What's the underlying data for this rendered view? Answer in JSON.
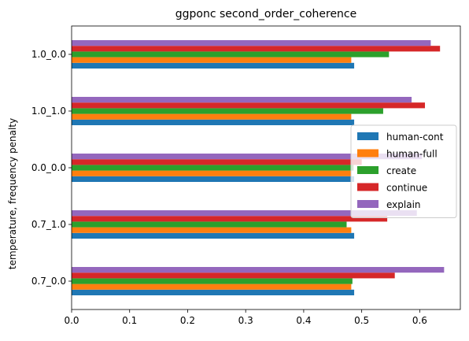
{
  "chart_data": {
    "type": "bar",
    "orientation": "horizontal",
    "title": "ggponc second_order_coherence",
    "xlabel": "",
    "ylabel": "temperature, frequency penalty",
    "xlim": [
      0,
      0.67
    ],
    "xticks": [
      "0.0",
      "0.1",
      "0.2",
      "0.3",
      "0.4",
      "0.5",
      "0.6"
    ],
    "xtick_values": [
      0.0,
      0.1,
      0.2,
      0.3,
      0.4,
      0.5,
      0.6
    ],
    "categories": [
      "0.7_0.0",
      "0.7_1.0",
      "0.0_0.0",
      "1.0_1.0",
      "1.0_0.0"
    ],
    "grid": false,
    "legend_position": "center-right",
    "series": [
      {
        "name": "human-cont",
        "color": "#1f77b4",
        "values": [
          0.487,
          0.487,
          0.487,
          0.487,
          0.487
        ]
      },
      {
        "name": "human-full",
        "color": "#ff7f0e",
        "values": [
          0.482,
          0.482,
          0.482,
          0.482,
          0.482
        ]
      },
      {
        "name": "create",
        "color": "#2ca02c",
        "values": [
          0.484,
          0.474,
          0.486,
          0.537,
          0.547
        ]
      },
      {
        "name": "continue",
        "color": "#d62728",
        "values": [
          0.557,
          0.544,
          0.5,
          0.609,
          0.635
        ]
      },
      {
        "name": "explain",
        "color": "#9467bd",
        "values": [
          0.642,
          0.595,
          0.604,
          0.586,
          0.619
        ]
      }
    ]
  }
}
